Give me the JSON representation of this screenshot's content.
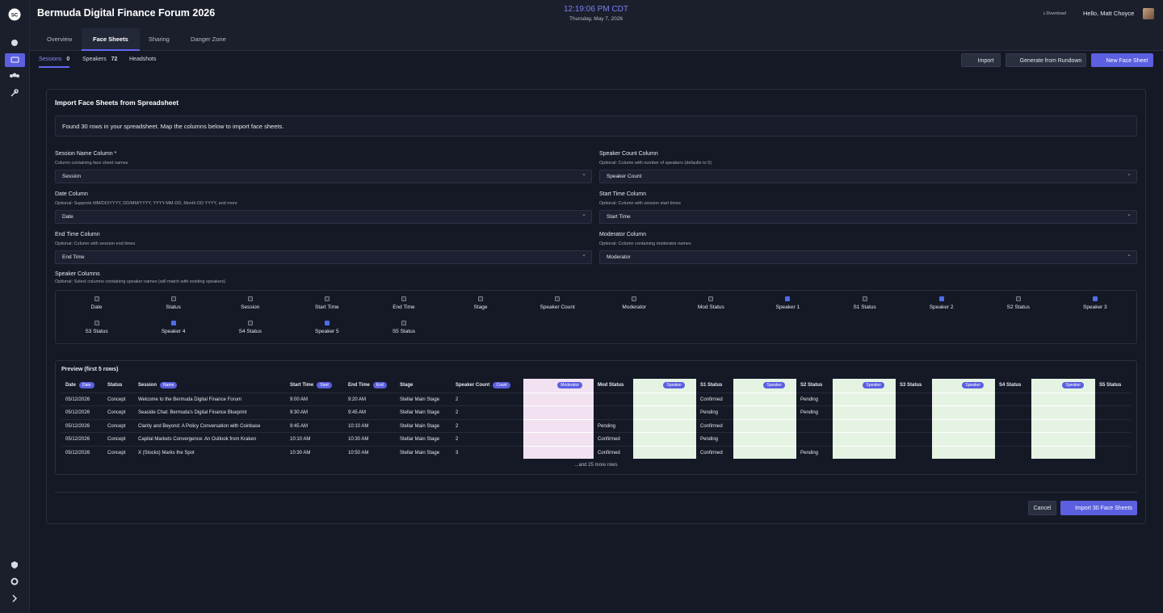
{
  "sidebar": {
    "logo": "SC"
  },
  "header": {
    "title": "Bermuda Digital Finance Forum 2026",
    "clock": "12:19:06 PM CDT",
    "date": "Thursday, May 7, 2026",
    "download": "Download",
    "greeting": "Hello, Matt Choyce"
  },
  "tabs": [
    "Overview",
    "Face Sheets",
    "Sharing",
    "Danger Zone"
  ],
  "subtabs": [
    {
      "label": "Sessions",
      "count": 0
    },
    {
      "label": "Speakers",
      "count": 72
    },
    {
      "label": "Headshots"
    }
  ],
  "toolbar": [
    "Import",
    "Generate from Rundown",
    "New Face Sheet"
  ],
  "import": {
    "title": "Import Face Sheets from Spreadsheet",
    "info": "Found 30 rows in your spreadsheet. Map the columns below to import face sheets.",
    "fields": [
      {
        "label": "Session Name Column *",
        "hint": "Column containing face sheet names",
        "value": "Session"
      },
      {
        "label": "Speaker Count Column",
        "hint": "Optional: Column with number of speakers (defaults to 5)",
        "value": "Speaker Count"
      },
      {
        "label": "Date Column",
        "hint": "Optional: Supports MM/DD/YYYY, DD/MM/YYYY, YYYY-MM-DD, Month DD YYYY, and more",
        "value": "Date"
      },
      {
        "label": "Start Time Column",
        "hint": "Optional: Column with session start times",
        "value": "Start Time"
      },
      {
        "label": "End Time Column",
        "hint": "Optional: Column with session end times",
        "value": "End Time"
      },
      {
        "label": "Moderator Column",
        "hint": "Optional: Column containing moderator names",
        "value": "Moderator"
      }
    ],
    "speaker_columns": {
      "label": "Speaker Columns",
      "hint": "Optional: Select columns containing speaker names (will match with existing speakers)",
      "options": [
        {
          "label": "Date",
          "checked": false
        },
        {
          "label": "Status",
          "checked": false
        },
        {
          "label": "Session",
          "checked": false
        },
        {
          "label": "Start Time",
          "checked": false
        },
        {
          "label": "End Time",
          "checked": false
        },
        {
          "label": "Stage",
          "checked": false
        },
        {
          "label": "Speaker Count",
          "checked": false
        },
        {
          "label": "Moderator",
          "checked": false
        },
        {
          "label": "Mod Status",
          "checked": false
        },
        {
          "label": "Speaker 1",
          "checked": true
        },
        {
          "label": "S1 Status",
          "checked": false
        },
        {
          "label": "Speaker 2",
          "checked": true
        },
        {
          "label": "S2 Status",
          "checked": false
        },
        {
          "label": "Speaker 3",
          "checked": true
        },
        {
          "label": "S3 Status",
          "checked": false
        },
        {
          "label": "Speaker 4",
          "checked": true
        },
        {
          "label": "S4 Status",
          "checked": false
        },
        {
          "label": "Speaker 5",
          "checked": true
        },
        {
          "label": "S5 Status",
          "checked": false
        }
      ]
    },
    "preview": {
      "title": "Preview (first 5 rows)",
      "headers": [
        {
          "label": "Date",
          "badge": "Date"
        },
        {
          "label": "Status"
        },
        {
          "label": "Session",
          "badge": "Name"
        },
        {
          "label": "Start Time",
          "badge": "Start"
        },
        {
          "label": "End Time",
          "badge": "End"
        },
        {
          "label": "Stage"
        },
        {
          "label": "Speaker Count",
          "badge": "Count"
        },
        {
          "badge": "Moderator",
          "color": "#f1e1f1"
        },
        {
          "label": "Mod Status"
        },
        {
          "badge": "Speaker",
          "color": "#e5f3e3"
        },
        {
          "label": "S1 Status"
        },
        {
          "badge": "Speaker",
          "color": "#e5f3e3"
        },
        {
          "label": "S2 Status"
        },
        {
          "badge": "Speaker",
          "color": "#e5f3e3"
        },
        {
          "label": "S3 Status"
        },
        {
          "badge": "Speaker",
          "color": "#e5f3e3"
        },
        {
          "label": "S4 Status"
        },
        {
          "badge": "Speaker",
          "color": "#e5f3e3"
        },
        {
          "label": "S5 Status"
        }
      ],
      "rows": [
        [
          "05/12/2026",
          "Concept",
          "Welcome to the Bermuda Digital Finance Forum",
          "9:00 AM",
          "9:20 AM",
          "Stellar Main Stage",
          2,
          null,
          null,
          null,
          "Confirmed",
          null,
          "Pending",
          null,
          null,
          null,
          null,
          null,
          null
        ],
        [
          "05/12/2026",
          "Concept",
          "Seaside Chat: Bermuda's Digital Finance Blueprint",
          "9:30 AM",
          "9:45 AM",
          "Stellar Main Stage",
          2,
          null,
          null,
          null,
          "Pending",
          null,
          "Pending",
          null,
          null,
          null,
          null,
          null,
          null
        ],
        [
          "05/12/2026",
          "Concept",
          "Clarity and Beyond: A Policy Conversation with Coinbase",
          "9:45 AM",
          "10:10 AM",
          "Stellar Main Stage",
          2,
          null,
          "Pending",
          null,
          "Confirmed",
          null,
          null,
          null,
          null,
          null,
          null,
          null,
          null
        ],
        [
          "05/12/2026",
          "Concept",
          "Capital Markets Convergence: An Outlook from Kraken",
          "10:10 AM",
          "10:30 AM",
          "Stellar Main Stage",
          2,
          null,
          "Confirmed",
          null,
          "Pending",
          null,
          null,
          null,
          null,
          null,
          null,
          null,
          null
        ],
        [
          "05/12/2026",
          "Concept",
          "X (Stocks) Marks the Spot",
          "10:30 AM",
          "10:50 AM",
          "Stellar Main Stage",
          3,
          null,
          "Confirmed",
          null,
          "Confirmed",
          null,
          "Pending",
          null,
          null,
          null,
          null,
          null,
          null
        ]
      ],
      "more": "...and 25 more rows"
    },
    "actions": [
      "Cancel",
      "Import 30 Face Sheets"
    ]
  }
}
